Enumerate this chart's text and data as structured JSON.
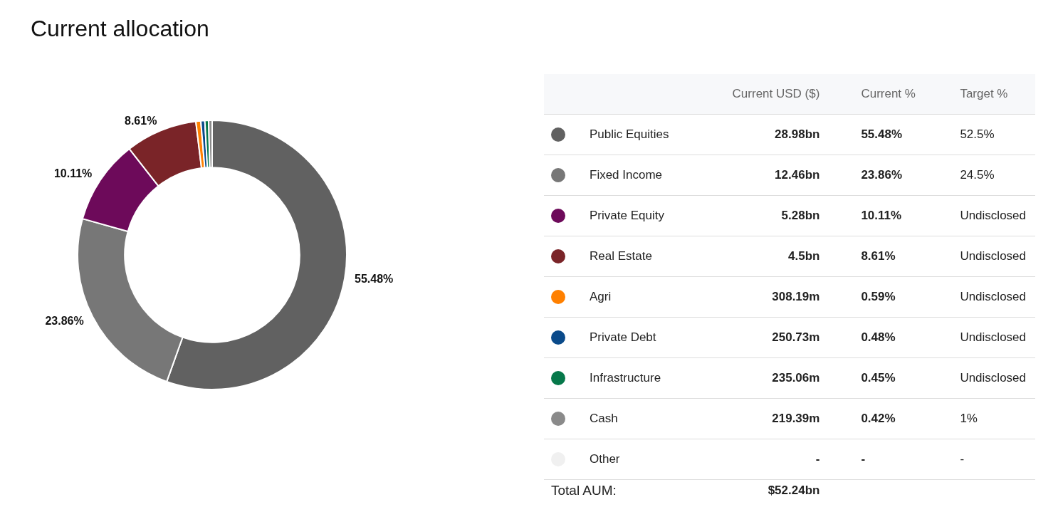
{
  "chart_data": [
    {
      "type": "donut",
      "title": "Current allocation",
      "categories": [
        "Public Equities",
        "Fixed Income",
        "Private Equity",
        "Real Estate",
        "Agri",
        "Private Debt",
        "Infrastructure",
        "Cash",
        "Other"
      ],
      "values": [
        55.48,
        23.86,
        10.11,
        8.61,
        0.59,
        0.48,
        0.45,
        0.42,
        null
      ],
      "colors": [
        "#616161",
        "#777777",
        "#6d0a5a",
        "#7a2428",
        "#ff8000",
        "#0a4a8a",
        "#06784a",
        "#8a8a8a",
        "#f0f0f0"
      ],
      "value_labels": [
        "55.48%",
        "23.86%",
        "10.11%",
        "8.61%",
        null,
        null,
        null,
        null,
        null
      ],
      "legend": false
    },
    {
      "type": "other",
      "categories": [
        "Current USD ($)",
        "Current %",
        "Target %"
      ],
      "cell_labels": [
        [
          "28.98bn",
          "55.48%",
          "52.5%"
        ],
        [
          "12.46bn",
          "23.86%",
          "24.5%"
        ],
        [
          "5.28bn",
          "10.11%",
          "Undisclosed"
        ],
        [
          "4.5bn",
          "8.61%",
          "Undisclosed"
        ],
        [
          "308.19m",
          "0.59%",
          "Undisclosed"
        ],
        [
          "250.73m",
          "0.48%",
          "Undisclosed"
        ],
        [
          "235.06m",
          "0.45%",
          "Undisclosed"
        ],
        [
          "219.39m",
          "0.42%",
          "1%"
        ],
        [
          "-",
          "-",
          "-"
        ]
      ],
      "annotations": [
        "Total AUM:",
        "$52.24bn"
      ]
    }
  ]
}
